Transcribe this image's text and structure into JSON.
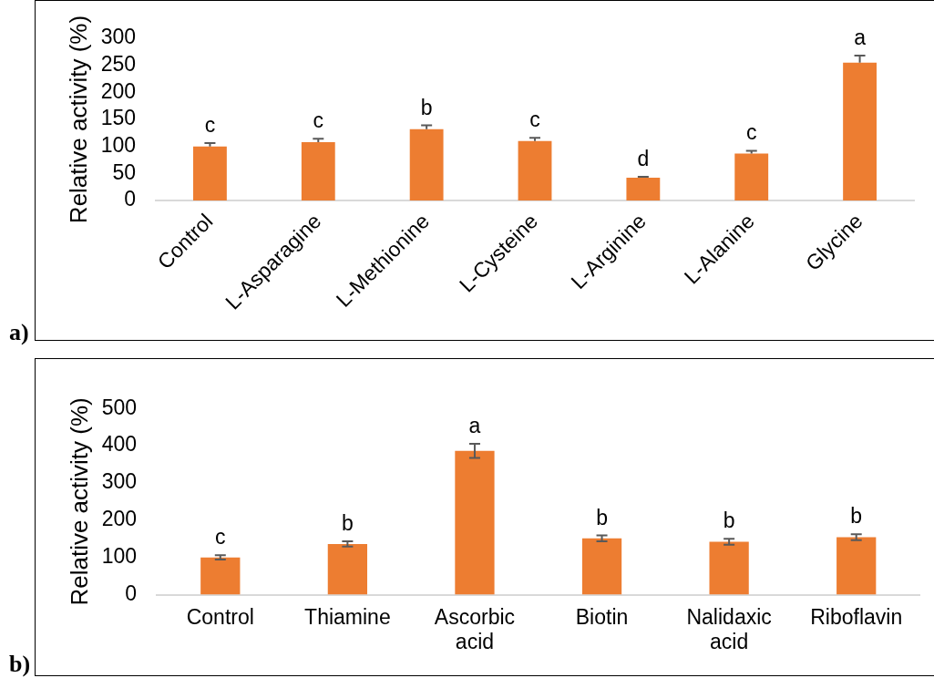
{
  "chart_data": [
    {
      "type": "bar",
      "ylabel": "Relative activity (%)",
      "categories": [
        "Control",
        "L-Asparagine",
        "L-Methionine",
        "L-Cysteine",
        "L-Arginine",
        "L-Alanine",
        "Glycine"
      ],
      "values": [
        100,
        108,
        132,
        110,
        42,
        87,
        255
      ],
      "color": "#ed7d31",
      "errors": [
        [
          100,
          106
        ],
        [
          108,
          114
        ],
        [
          132,
          139
        ],
        [
          110,
          116
        ],
        [
          42,
          44
        ],
        [
          87,
          92
        ],
        [
          255,
          268
        ]
      ],
      "ylim": [
        0,
        300
      ],
      "yticks": [
        0,
        50,
        100,
        150,
        200,
        250,
        300
      ],
      "annotations": [
        {
          "text": "c",
          "x": "Control",
          "y": 106
        },
        {
          "text": "c",
          "x": "L-Asparagine",
          "y": 114
        },
        {
          "text": "b",
          "x": "L-Methionine",
          "y": 139
        },
        {
          "text": "c",
          "x": "L-Cysteine",
          "y": 116
        },
        {
          "text": "d",
          "x": "L-Arginine",
          "y": 44
        },
        {
          "text": "c",
          "x": "L-Alanine",
          "y": 92
        },
        {
          "text": "a",
          "x": "Glycine",
          "y": 268
        },
        "a)"
      ]
    },
    {
      "type": "bar",
      "ylabel": "Relative activity (%)",
      "categories": [
        "Control",
        "Thiamine",
        "Ascorbic acid",
        "Biotin",
        "Nalidaxic acid",
        "Riboflavin"
      ],
      "values": [
        100,
        136,
        386,
        151,
        142,
        154
      ],
      "color": "#ed7d31",
      "errors": [
        6,
        7,
        19,
        8,
        8,
        8
      ],
      "ylim": [
        0,
        500
      ],
      "yticks": [
        0,
        100,
        200,
        300,
        400,
        500
      ],
      "annotations": [
        {
          "text": "c",
          "x": "Control",
          "y": 106
        },
        {
          "text": "b",
          "x": "Thiamine",
          "y": 143
        },
        {
          "text": "a",
          "x": "Ascorbic acid",
          "y": 405
        },
        {
          "text": "b",
          "x": "Biotin",
          "y": 159
        },
        {
          "text": "b",
          "x": "Nalidaxic acid",
          "y": 150
        },
        {
          "text": "b",
          "x": "Riboflavin",
          "y": 162
        },
        "b)"
      ]
    }
  ]
}
